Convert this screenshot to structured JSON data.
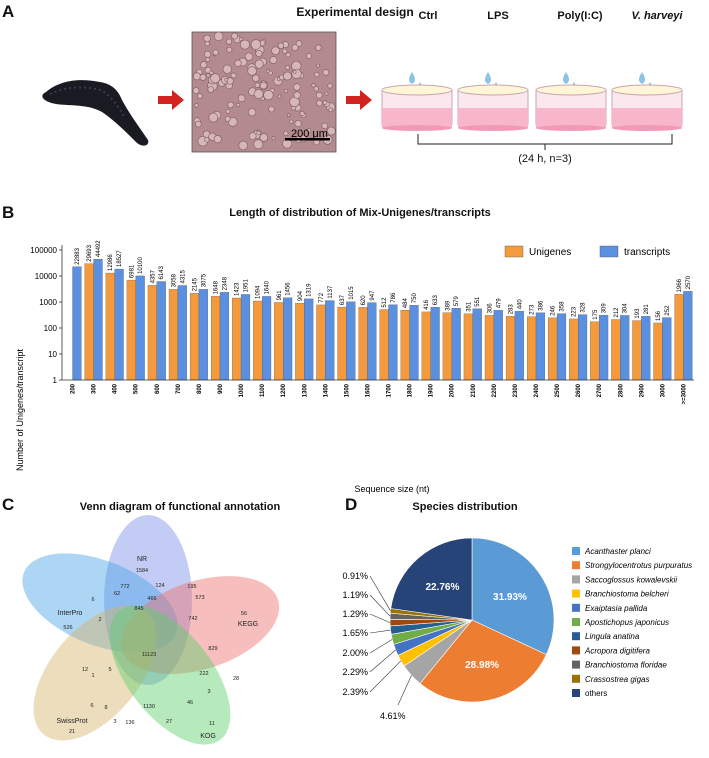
{
  "panel_a": {
    "letter": "A",
    "title": "Experimental design",
    "scale_bar": "200 μm",
    "treatments": [
      "Ctrl",
      "LPS",
      "Poly(I:C)",
      "V. harveyi"
    ],
    "note": "(24 h, n=3)"
  },
  "panel_b": {
    "letter": "B",
    "chart_data": {
      "type": "bar",
      "title": "Length of distribution of Mix-Unigenes/transcripts",
      "xlabel": "Sequence size (nt)",
      "ylabel": "Number of Unigenes/transcript",
      "yscale": "log",
      "ylim": [
        1,
        100000
      ],
      "yticks": [
        "1",
        "10",
        "100",
        "1000",
        "10000",
        "100000"
      ],
      "legend": "top-right",
      "categories": [
        "200",
        "300",
        "400",
        "500",
        "600",
        "700",
        "800",
        "900",
        "1000",
        "1100",
        "1200",
        "1300",
        "1400",
        "1500",
        "1600",
        "1700",
        "1800",
        "1900",
        "2000",
        "2100",
        "2200",
        "2300",
        "2400",
        "2500",
        "2600",
        "2700",
        "2800",
        "2900",
        "3000",
        ">=3000"
      ],
      "series": [
        {
          "name": "Unigenes",
          "color": "#f59a3c",
          "values": [
            null,
            29693,
            12986,
            6981,
            4357,
            3058,
            2145,
            1648,
            1423,
            1094,
            961,
            904,
            772,
            637,
            620,
            512,
            484,
            416,
            389,
            351,
            306,
            283,
            273,
            246,
            223,
            175,
            212,
            193,
            156,
            1966
          ]
        },
        {
          "name": "transcripts",
          "color": "#5b8fe0",
          "values": [
            22883,
            44492,
            18527,
            10100,
            6143,
            4315,
            3075,
            2348,
            1951,
            1640,
            1456,
            1319,
            1137,
            1015,
            947,
            786,
            750,
            633,
            579,
            551,
            479,
            440,
            386,
            358,
            328,
            309,
            304,
            281,
            252,
            2570
          ]
        }
      ]
    }
  },
  "panel_c": {
    "letter": "C",
    "title": "Venn diagram of functional annotation",
    "sets": [
      {
        "name": "NR",
        "total": "1584",
        "color": "#7b8de8"
      },
      {
        "name": "InterPro",
        "total": "526",
        "color": "#4aa3e8"
      },
      {
        "name": "KEGG",
        "total": "56",
        "color": "#ee6e6e"
      },
      {
        "name": "SwissProt",
        "total": "21",
        "color": "#d4b36a"
      },
      {
        "name": "KOG",
        "total": "11",
        "color": "#5ed06a"
      }
    ],
    "region_values": [
      "772",
      "124",
      "62",
      "466",
      "195",
      "573",
      "845",
      "742",
      "6",
      "2",
      "12",
      "1",
      "5",
      "11123",
      "829",
      "28",
      "222",
      "3",
      "6",
      "8",
      "1130",
      "46",
      "27",
      "136",
      "3"
    ]
  },
  "panel_d": {
    "letter": "D",
    "chart_data": {
      "type": "pie",
      "title": "Species distribution",
      "legend": "right",
      "labels": [
        "Acanthaster planci",
        "Strongylocentrotus purpuratus",
        "Saccoglossus kowalevskii",
        "Branchiostoma belcheri",
        "Exaiptasia pallida",
        "Apostichopus japonicus",
        "Lingula anatina",
        "Acropora digitifera",
        "Branchiostoma floridae",
        "Crassostrea gigas",
        "others"
      ],
      "values": [
        31.93,
        28.98,
        4.61,
        2.39,
        2.29,
        2.0,
        1.65,
        1.29,
        1.19,
        0.91,
        22.76
      ],
      "value_labels": [
        "31.93%",
        "28.98%",
        "4.61%",
        "2.39%",
        "2.29%",
        "2.00%",
        "1.65%",
        "1.29%",
        "1.19%",
        "0.91%",
        "22.76%"
      ],
      "colors": [
        "#5b9bd5",
        "#ed7d31",
        "#a5a5a5",
        "#ffc000",
        "#4472c4",
        "#70ad47",
        "#255e91",
        "#9e480e",
        "#636363",
        "#997300",
        "#264478"
      ]
    }
  }
}
